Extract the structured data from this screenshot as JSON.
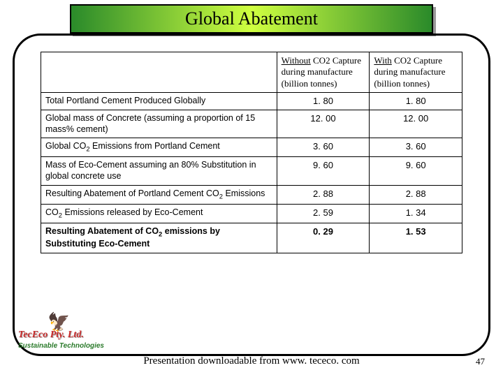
{
  "title": "Global Abatement",
  "table": {
    "header_blank": "",
    "header_col2_line1": "Without",
    "header_col2_rest": " CO2 Capture during manufacture (billion tonnes)",
    "header_col3_line1": "With",
    "header_col3_rest": " CO2 Capture during manufacture (billion tonnes)",
    "rows": [
      {
        "label": "Total Portland Cement Produced Globally",
        "v1": "1. 80",
        "v2": "1. 80",
        "bold": false,
        "has_sub": false
      },
      {
        "label": "Global mass of Concrete (assuming a proportion of 15 mass% cement)",
        "v1": "12. 00",
        "v2": "12. 00",
        "bold": false,
        "has_sub": false
      },
      {
        "label_pre": "Global CO",
        "label_post": " Emissions from Portland Cement",
        "v1": "3. 60",
        "v2": "3. 60",
        "bold": false,
        "has_sub": true
      },
      {
        "label": "Mass of Eco-Cement assuming an 80% Substitution in global concrete use",
        "v1": "9. 60",
        "v2": "9. 60",
        "bold": false,
        "has_sub": false
      },
      {
        "label_pre": "Resulting Abatement of Portland Cement CO",
        "label_post": " Emissions",
        "v1": "2. 88",
        "v2": "2. 88",
        "bold": false,
        "has_sub": true
      },
      {
        "label_pre": "CO",
        "label_post": " Emissions released by Eco-Cement",
        "v1": "2. 59",
        "v2": "1. 34",
        "bold": false,
        "has_sub": true
      },
      {
        "label_pre": "Resulting Abatement of CO",
        "label_post": " emissions by Substituting Eco-Cement",
        "v1": "0. 29",
        "v2": "1. 53",
        "bold": true,
        "has_sub": true
      }
    ]
  },
  "brand": {
    "line1": "TecEco Pty. Ltd.",
    "line2": "Sustainable Technologies"
  },
  "footer": "Presentation downloadable from www. tececo. com",
  "page_number": "47",
  "colors": {
    "title_gradient_edge": "#2a8a2a",
    "title_gradient_mid": "#d0ff40",
    "border": "#000000",
    "brand_red": "#c82a2a",
    "brand_green": "#2a7a2a"
  }
}
